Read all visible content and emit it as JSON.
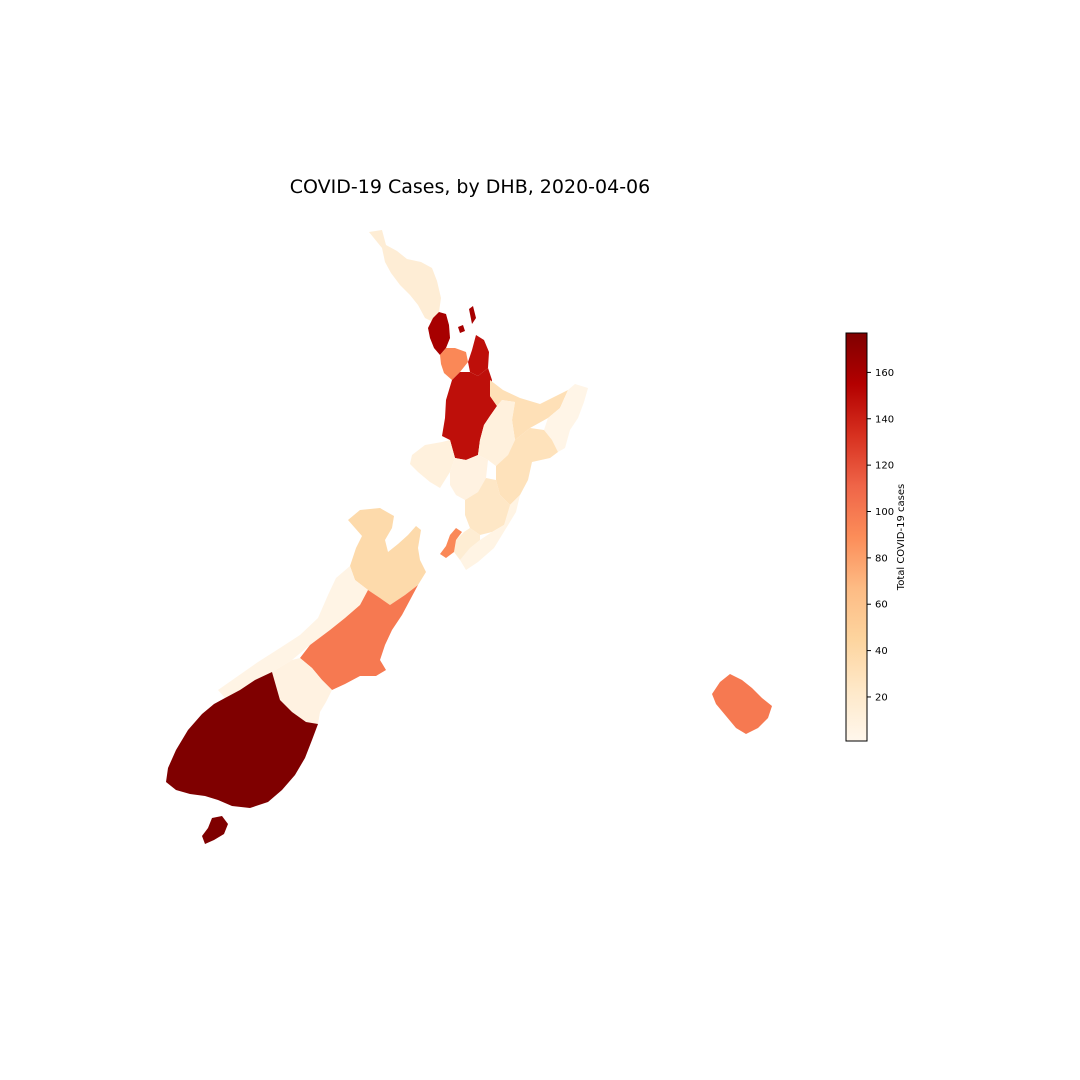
{
  "title": "COVID-19 Cases, by DHB, 2020-04-06",
  "colorbar": {
    "label": "Total COVID-19 cases",
    "min": 1,
    "max": 177,
    "ticks": [
      20,
      40,
      60,
      80,
      100,
      120,
      140,
      160
    ],
    "colormap": "OrRd",
    "stops": [
      "#fff7ec",
      "#fee8c8",
      "#fdd49e",
      "#fdbb84",
      "#fc8d59",
      "#ef6548",
      "#d7301f",
      "#b30000",
      "#7f0000"
    ]
  },
  "chart_data": {
    "type": "choropleth",
    "title": "COVID-19 Cases, by DHB, 2020-04-06",
    "value_label": "Total COVID-19 cases",
    "color_range": [
      1,
      177
    ],
    "regions": [
      {
        "id": "northland",
        "value": 15
      },
      {
        "id": "waitemata",
        "value": 160
      },
      {
        "id": "auckland",
        "value": 92
      },
      {
        "id": "counties-manukau",
        "value": 148
      },
      {
        "id": "waikato",
        "value": 148
      },
      {
        "id": "bay-of-plenty",
        "value": 32
      },
      {
        "id": "lakes",
        "value": 10
      },
      {
        "id": "tairawhiti",
        "value": 4
      },
      {
        "id": "taranaki",
        "value": 10
      },
      {
        "id": "whanganui",
        "value": 8
      },
      {
        "id": "midcentral",
        "value": 24
      },
      {
        "id": "hawkes-bay",
        "value": 30
      },
      {
        "id": "wairarapa",
        "value": 6
      },
      {
        "id": "capital-coast",
        "value": 92
      },
      {
        "id": "hutt-valley",
        "value": 16
      },
      {
        "id": "nelson-marlborough",
        "value": 38
      },
      {
        "id": "west-coast",
        "value": 5
      },
      {
        "id": "canterbury",
        "value": 100
      },
      {
        "id": "south-canterbury",
        "value": 8
      },
      {
        "id": "southern",
        "value": 177
      },
      {
        "id": "chatham-islands",
        "value": 100
      }
    ]
  }
}
